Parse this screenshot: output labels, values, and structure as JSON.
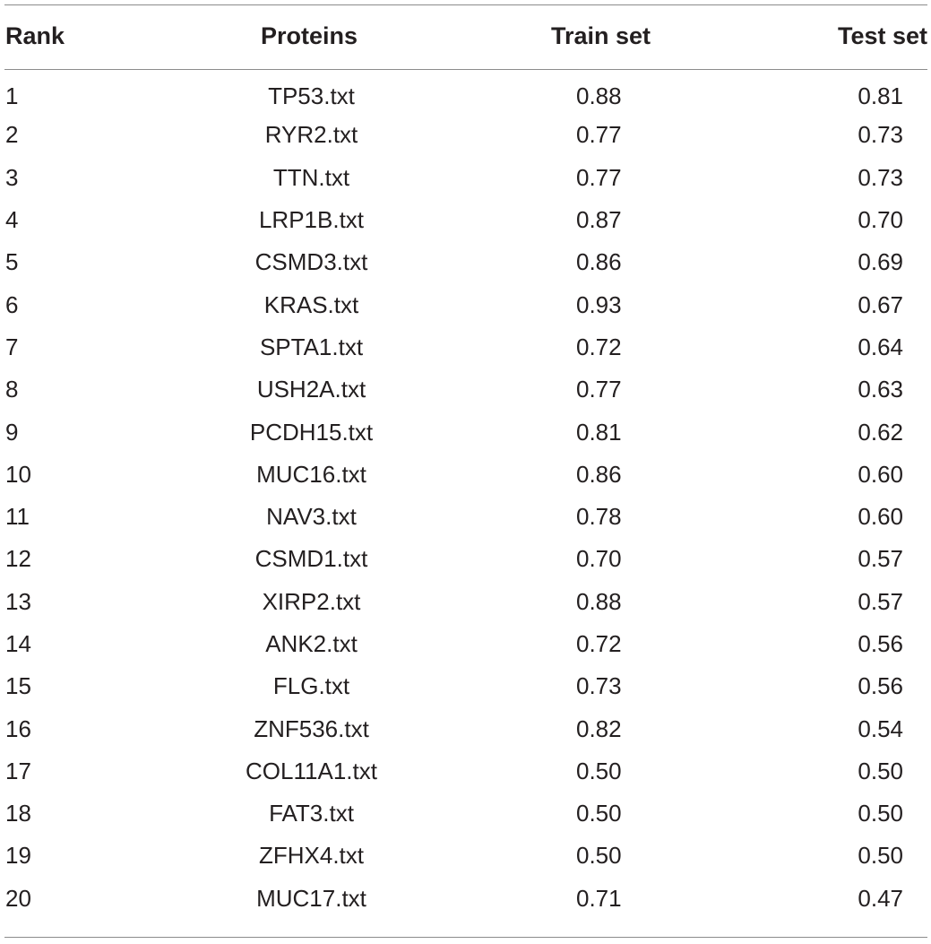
{
  "table": {
    "headers": {
      "rank": "Rank",
      "proteins": "Proteins",
      "train": "Train set",
      "test": "Test set"
    },
    "rows": [
      {
        "rank": "1",
        "protein": "TP53.txt",
        "train": "0.88",
        "test": "0.81"
      },
      {
        "rank": "2",
        "protein": "RYR2.txt",
        "train": "0.77",
        "test": "0.73"
      },
      {
        "rank": "3",
        "protein": "TTN.txt",
        "train": "0.77",
        "test": "0.73"
      },
      {
        "rank": "4",
        "protein": "LRP1B.txt",
        "train": "0.87",
        "test": "0.70"
      },
      {
        "rank": "5",
        "protein": "CSMD3.txt",
        "train": "0.86",
        "test": "0.69"
      },
      {
        "rank": "6",
        "protein": "KRAS.txt",
        "train": "0.93",
        "test": "0.67"
      },
      {
        "rank": "7",
        "protein": "SPTA1.txt",
        "train": "0.72",
        "test": "0.64"
      },
      {
        "rank": "8",
        "protein": "USH2A.txt",
        "train": "0.77",
        "test": "0.63"
      },
      {
        "rank": "9",
        "protein": "PCDH15.txt",
        "train": "0.81",
        "test": "0.62"
      },
      {
        "rank": "10",
        "protein": "MUC16.txt",
        "train": "0.86",
        "test": "0.60"
      },
      {
        "rank": "11",
        "protein": "NAV3.txt",
        "train": "0.78",
        "test": "0.60"
      },
      {
        "rank": "12",
        "protein": "CSMD1.txt",
        "train": "0.70",
        "test": "0.57"
      },
      {
        "rank": "13",
        "protein": "XIRP2.txt",
        "train": "0.88",
        "test": "0.57"
      },
      {
        "rank": "14",
        "protein": "ANK2.txt",
        "train": "0.72",
        "test": "0.56"
      },
      {
        "rank": "15",
        "protein": "FLG.txt",
        "train": "0.73",
        "test": "0.56"
      },
      {
        "rank": "16",
        "protein": "ZNF536.txt",
        "train": "0.82",
        "test": "0.54"
      },
      {
        "rank": "17",
        "protein": "COL11A1.txt",
        "train": "0.50",
        "test": "0.50"
      },
      {
        "rank": "18",
        "protein": "FAT3.txt",
        "train": "0.50",
        "test": "0.50"
      },
      {
        "rank": "19",
        "protein": "ZFHX4.txt",
        "train": "0.50",
        "test": "0.50"
      },
      {
        "rank": "20",
        "protein": "MUC17.txt",
        "train": "0.71",
        "test": "0.47"
      }
    ]
  }
}
